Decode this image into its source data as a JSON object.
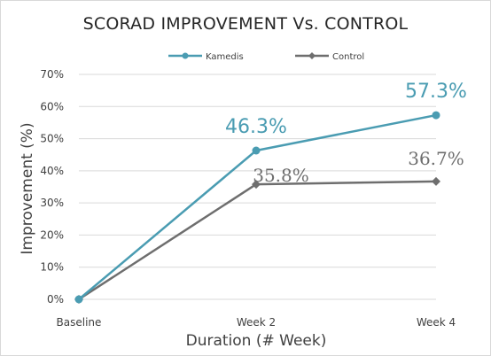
{
  "chart_data": {
    "type": "line",
    "title": "SCORAD IMPROVEMENT Vs. CONTROL",
    "xlabel": "Duration (# Week)",
    "ylabel": "Improvement (%)",
    "categories": [
      "Baseline",
      "Week 2",
      "Week 4"
    ],
    "ylim": [
      0,
      70
    ],
    "yticks": [
      "0%",
      "10%",
      "20%",
      "30%",
      "40%",
      "50%",
      "60%",
      "70%"
    ],
    "legend_position": "top",
    "grid": true,
    "series": [
      {
        "name": "Kamedis",
        "values": [
          0,
          46.3,
          57.3
        ],
        "data_labels": [
          "",
          "46.3%",
          "57.3%"
        ],
        "color": "#4a9cb2",
        "marker": "circle"
      },
      {
        "name": "Control",
        "values": [
          0,
          35.8,
          36.7
        ],
        "data_labels": [
          "",
          "35.8%",
          "36.7%"
        ],
        "color": "#6e6e6e",
        "marker": "diamond"
      }
    ]
  }
}
